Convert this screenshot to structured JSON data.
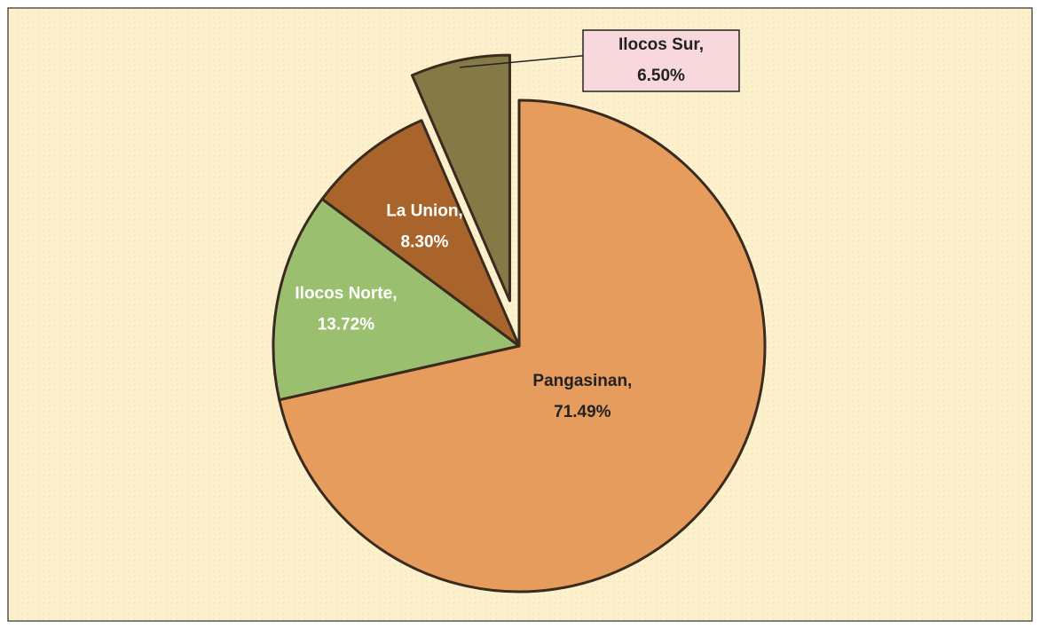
{
  "chart_data": {
    "type": "pie",
    "categories": [
      "Pangasinan,",
      "Ilocos Norte,",
      "La Union,",
      "Ilocos Sur,"
    ],
    "values": [
      71.49,
      13.72,
      8.3,
      6.5
    ],
    "value_labels": [
      "71.49%",
      "13.72%",
      "8.30%",
      "6.50%"
    ],
    "colors": [
      "#e59c5c",
      "#9abf6e",
      "#a8642a",
      "#857a45"
    ],
    "exploded": [
      false,
      false,
      false,
      true
    ]
  }
}
